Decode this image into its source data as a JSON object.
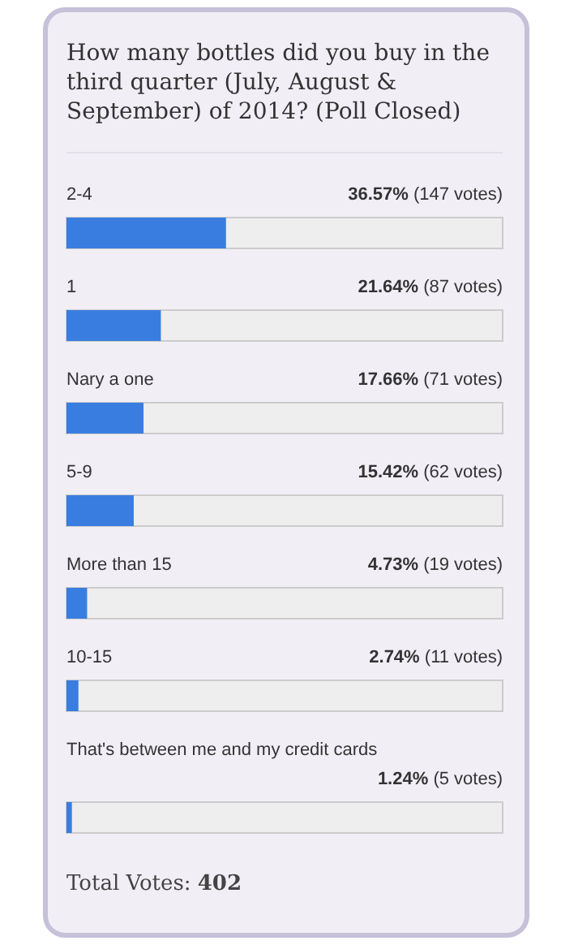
{
  "chart_data": {
    "type": "bar",
    "orientation": "horizontal",
    "title": "How many bottles did you buy in the third quarter (July, August & September) of 2014? (Poll Closed)",
    "categories": [
      "2-4",
      "1",
      "Nary a one",
      "5-9",
      "More than 15",
      "10-15",
      "That's between me and my credit cards"
    ],
    "values": [
      36.57,
      21.64,
      17.66,
      15.42,
      4.73,
      2.74,
      1.24
    ],
    "value_labels": [
      "36.57% (147 votes)",
      "21.64% (87 votes)",
      "17.66% (71 votes)",
      "15.42% (62 votes)",
      "4.73% (19 votes)",
      "2.74% (11 votes)",
      "1.24% (5 votes)"
    ],
    "color": "#3a7de0",
    "xlim": [
      0,
      100
    ],
    "tick_labels": false,
    "annotations": [
      "Total Votes: 402"
    ]
  }
}
